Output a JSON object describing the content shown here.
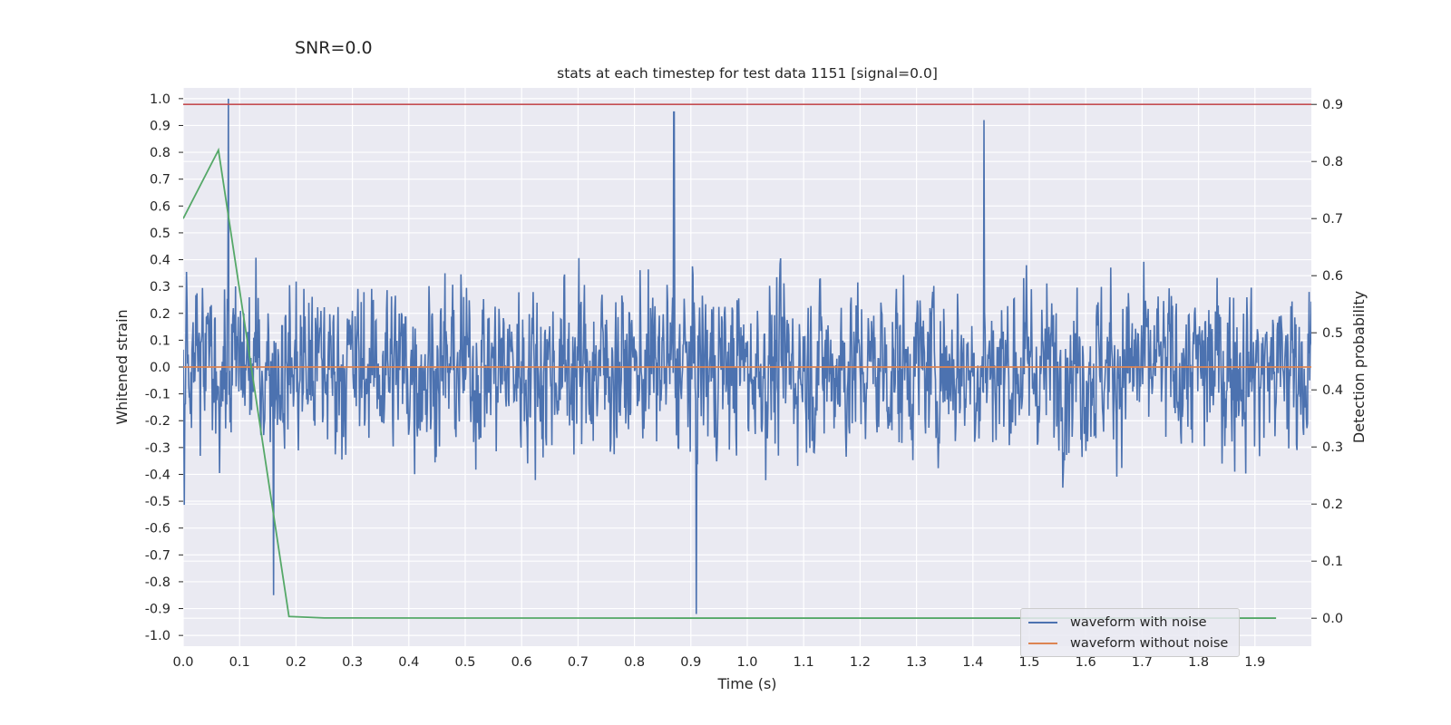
{
  "suptitle": "SNR=0.0",
  "chart_data": {
    "type": "line",
    "title": "stats at each timestep for test data 1151 [signal=0.0]",
    "xlabel": "Time (s)",
    "ylabel": "Whitened strain",
    "y2label": "Detection probability",
    "xlim": [
      0.0,
      2.0
    ],
    "ylim": [
      -1.04,
      1.04
    ],
    "y2lim": [
      -0.0489,
      0.9289
    ],
    "xticks": [
      "0.0",
      "0.1",
      "0.2",
      "0.3",
      "0.4",
      "0.5",
      "0.6",
      "0.7",
      "0.8",
      "0.9",
      "1.0",
      "1.1",
      "1.2",
      "1.3",
      "1.4",
      "1.5",
      "1.6",
      "1.7",
      "1.8",
      "1.9"
    ],
    "yticks": [
      "1.0",
      "0.9",
      "0.8",
      "0.7",
      "0.6",
      "0.5",
      "0.4",
      "0.3",
      "0.2",
      "0.1",
      "0.0",
      "-0.1",
      "-0.2",
      "-0.3",
      "-0.4",
      "-0.5",
      "-0.6",
      "-0.7",
      "-0.8",
      "-0.9",
      "-1.0"
    ],
    "y2ticks": [
      "0.9",
      "0.8",
      "0.7",
      "0.6",
      "0.5",
      "0.4",
      "0.3",
      "0.2",
      "0.1",
      "0.0"
    ],
    "grid": true,
    "legend_position": "lower-right",
    "colors": {
      "background": "#eaeaf2",
      "grid": "#ffffff",
      "noise": "#4c72b0",
      "clean": "#dd8452",
      "probability": "#55a868",
      "threshold": "#c44e52"
    },
    "series": [
      {
        "name": "waveform with noise",
        "color": "#4c72b0",
        "axis": "left",
        "description_note": "dense white-noise strain, amplitude roughly within -0.92..1.0",
        "n_points": 2048,
        "x_range": [
          0.0,
          2.0
        ],
        "amplitude_range": [
          -0.92,
          1.0
        ],
        "peaks": [
          {
            "x": 0.08,
            "y": 1.0
          },
          {
            "x": 0.87,
            "y": 0.95
          },
          {
            "x": 1.42,
            "y": 0.92
          },
          {
            "x": 0.91,
            "y": -0.92
          },
          {
            "x": 0.16,
            "y": -0.85
          }
        ]
      },
      {
        "name": "waveform without noise",
        "color": "#dd8452",
        "axis": "left",
        "x": [
          0.0,
          2.0
        ],
        "y": [
          0.0,
          0.0
        ]
      },
      {
        "name": "detection probability",
        "color": "#55a868",
        "axis": "right",
        "x": [
          0.0,
          0.0625,
          0.1875,
          0.25,
          0.5,
          1.0,
          1.5,
          1.9375
        ],
        "y": [
          0.7,
          0.82,
          0.003,
          0.0005,
          0.0003,
          0.0002,
          0.0002,
          0.0002
        ]
      },
      {
        "name": "threshold",
        "color": "#c44e52",
        "axis": "right",
        "x": [
          0.0,
          2.0
        ],
        "y": [
          0.9,
          0.9
        ]
      }
    ]
  },
  "legend": [
    {
      "label": "waveform with noise",
      "color": "#4c72b0"
    },
    {
      "label": "waveform without noise",
      "color": "#dd8452"
    }
  ]
}
